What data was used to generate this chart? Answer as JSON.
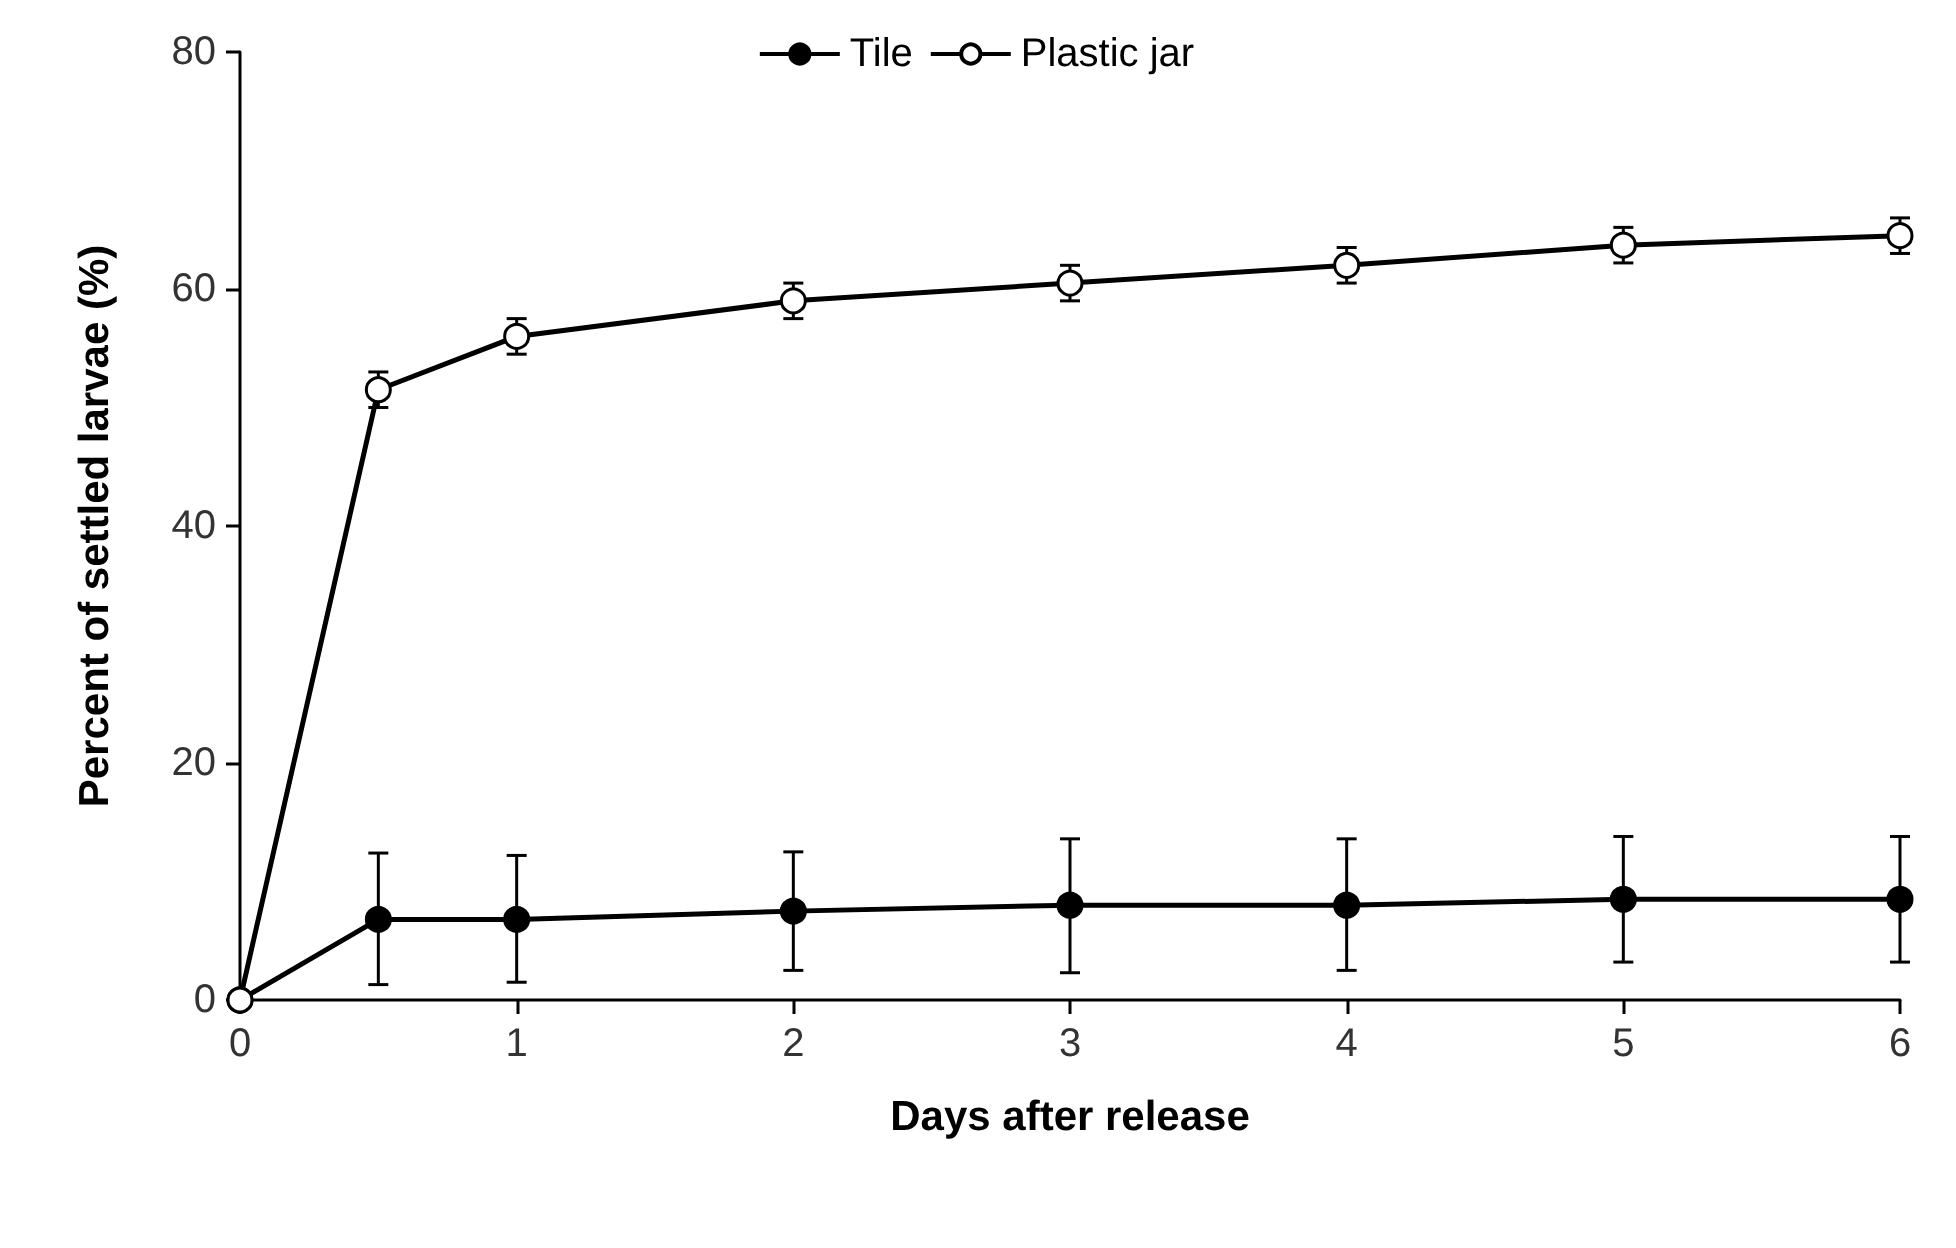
{
  "chart_data": {
    "type": "line",
    "xlabel": "Days after release",
    "ylabel": "Percent of settled larvae (%)",
    "x": [
      0,
      0.5,
      1,
      2,
      3,
      4,
      5,
      6
    ],
    "series": [
      {
        "name": "Tile",
        "color": "#000000",
        "values": [
          0,
          6.8,
          6.8,
          7.5,
          8,
          8,
          8.5,
          8.5
        ],
        "errors": [
          null,
          [
            1.3,
            12.4
          ],
          [
            1.5,
            12.2
          ],
          [
            2.5,
            12.5
          ],
          [
            2.3,
            13.6
          ],
          [
            2.5,
            13.6
          ],
          [
            3.2,
            13.8
          ],
          [
            3.2,
            13.8
          ]
        ]
      },
      {
        "name": "Plastic jar",
        "color": "#ffffff",
        "values": [
          0,
          51.5,
          56,
          59,
          60.5,
          62,
          63.7,
          64.5
        ],
        "errors": [
          null,
          1.5,
          1.5,
          1.5,
          1.5,
          1.5,
          1.5,
          1.5
        ]
      }
    ],
    "xlim": [
      0,
      6
    ],
    "xticks": [
      0,
      1,
      2,
      3,
      4,
      5,
      6
    ],
    "ylim": [
      0,
      80
    ],
    "yticks": [
      0,
      20,
      40,
      60,
      80
    ],
    "grid": false,
    "legend": "top",
    "marker": "circle",
    "line_style": "solid"
  }
}
